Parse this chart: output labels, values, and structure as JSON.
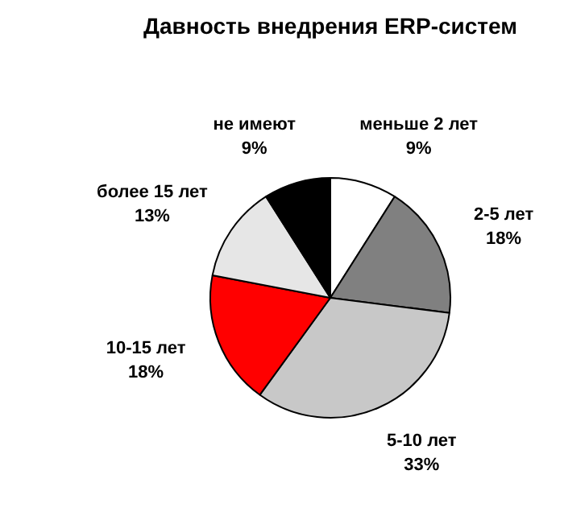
{
  "chart_data": {
    "type": "pie",
    "title": "Давность внедрения ERP-систем",
    "categories": [
      "меньше 2 лет",
      "2-5 лет",
      "5-10 лет",
      "10-15 лет",
      "более 15 лет",
      "не имеют"
    ],
    "values": [
      9,
      18,
      33,
      18,
      13,
      9
    ],
    "colors": [
      "#ffffff",
      "#808080",
      "#c8c8c8",
      "#ff0000",
      "#e6e6e6",
      "#000000"
    ],
    "value_labels": [
      "9%",
      "18%",
      "33%",
      "18%",
      "13%",
      "9%"
    ],
    "legend": false
  }
}
